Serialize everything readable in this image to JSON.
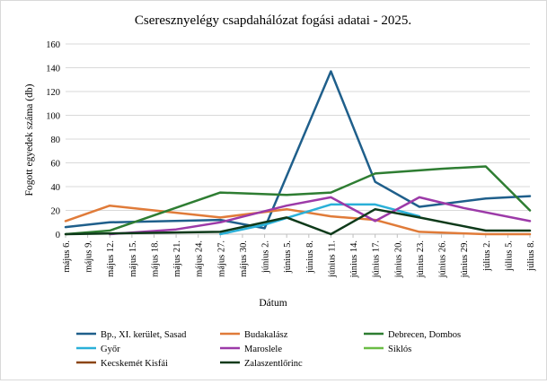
{
  "chart_data": {
    "type": "line",
    "title": "Cseresznyelégy csapdahálózat fogási adatai - 2025.",
    "xlabel": "Dátum",
    "ylabel": "Fogott egyedek száma (db)",
    "ylim": [
      0,
      160
    ],
    "yticks": [
      0,
      20,
      40,
      60,
      80,
      100,
      120,
      140,
      160
    ],
    "grid": "horizontal",
    "legend_position": "bottom",
    "categories": [
      "május 6.",
      "május 9.",
      "május 12.",
      "május 15.",
      "május 18.",
      "május 21.",
      "május 24.",
      "május 27.",
      "május 30.",
      "június 2.",
      "június 5.",
      "június 8.",
      "június 11.",
      "június 14.",
      "június 17.",
      "június 20.",
      "június 23.",
      "június 26.",
      "június 29.",
      "július 2.",
      "július 5.",
      "július 8."
    ],
    "series": [
      {
        "name": "Bp., XI. kerület, Sasad",
        "color": "#1f5f8b",
        "points": [
          [
            0,
            6
          ],
          [
            2,
            10
          ],
          [
            7,
            12
          ],
          [
            9,
            5
          ],
          [
            12,
            137
          ],
          [
            14,
            44
          ],
          [
            16,
            23
          ],
          [
            19,
            30
          ],
          [
            21,
            32
          ]
        ]
      },
      {
        "name": "Budakalász",
        "color": "#e07b39",
        "points": [
          [
            0,
            11
          ],
          [
            2,
            24
          ],
          [
            7,
            14
          ],
          [
            10,
            21
          ],
          [
            12,
            15
          ],
          [
            14,
            12
          ],
          [
            16,
            2
          ],
          [
            19,
            0
          ],
          [
            21,
            0
          ]
        ]
      },
      {
        "name": "Debrecen, Dombos",
        "color": "#2e7d32",
        "points": [
          [
            0,
            0
          ],
          [
            2,
            3
          ],
          [
            7,
            35
          ],
          [
            10,
            33
          ],
          [
            12,
            35
          ],
          [
            14,
            51
          ],
          [
            17,
            55
          ],
          [
            19,
            57
          ],
          [
            21,
            20
          ]
        ]
      },
      {
        "name": "Győr",
        "color": "#2ab0d8",
        "points": [
          [
            7,
            0
          ],
          [
            9,
            8
          ],
          [
            12,
            25
          ],
          [
            14,
            25
          ],
          [
            16,
            15
          ]
        ]
      },
      {
        "name": "Maroslele",
        "color": "#9c3aa8",
        "points": [
          [
            2,
            0
          ],
          [
            5,
            4
          ],
          [
            7,
            10
          ],
          [
            10,
            24
          ],
          [
            12,
            31
          ],
          [
            14,
            11
          ],
          [
            16,
            31
          ],
          [
            18,
            22
          ],
          [
            21,
            11
          ]
        ]
      },
      {
        "name": "Siklós",
        "color": "#6abd45",
        "points": []
      },
      {
        "name": "Kecskemét Kisfái",
        "color": "#8b4513",
        "points": []
      },
      {
        "name": "Zalaszentlőrinc",
        "color": "#0e3a1a",
        "points": [
          [
            0,
            0
          ],
          [
            7,
            2
          ],
          [
            10,
            14
          ],
          [
            12,
            0
          ],
          [
            14,
            21
          ],
          [
            16,
            14
          ],
          [
            19,
            3
          ],
          [
            21,
            3
          ]
        ]
      }
    ]
  }
}
